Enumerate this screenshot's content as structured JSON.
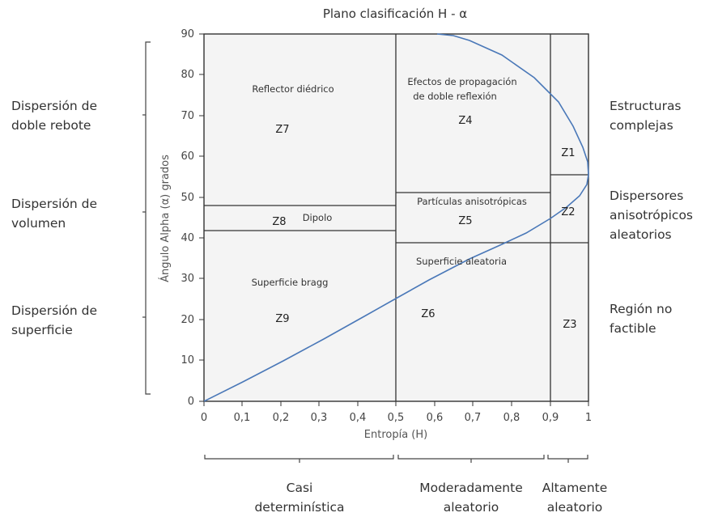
{
  "title": "Plano clasificación H - α",
  "xlabel": "Entropía (H)",
  "ylabel": "Ángulo Alpha (α) grados",
  "x_ticks": [
    "0",
    "0,1",
    "0,2",
    "0,3",
    "0,4",
    "0,5",
    "0,6",
    "0,7",
    "0,8",
    "0,9",
    "1"
  ],
  "y_ticks": [
    "0",
    "10",
    "20",
    "30",
    "40",
    "50",
    "60",
    "70",
    "80",
    "90"
  ],
  "zones": {
    "z1": "Z1",
    "z2": "Z2",
    "z3": "Z3",
    "z4": "Z4",
    "z5": "Z5",
    "z6": "Z6",
    "z7": "Z7",
    "z8": "Z8",
    "z9": "Z9"
  },
  "descriptions": {
    "reflector": "Reflector diédrico",
    "efectos_1": "Efectos de propagación",
    "efectos_2": "de doble reflexión",
    "particulas": "Partículas anisotrópicas",
    "dipolo": "Dipolo",
    "superficie_aleatoria": "Superficie aleatoria",
    "superficie_bragg": "Superficie bragg"
  },
  "left_labels": {
    "doble_1": "Dispersión de",
    "doble_2": "doble rebote",
    "volumen_1": "Dispersión de",
    "volumen_2": "volumen",
    "superficie_1": "Dispersión de",
    "superficie_2": "superficie"
  },
  "right_labels": {
    "estructuras_1": "Estructuras",
    "estructuras_2": "complejas",
    "dispersores_1": "Dispersores",
    "dispersores_2": "anisotrópicos",
    "dispersores_3": "aleatorios",
    "region_1": "Región no",
    "region_2": "factible"
  },
  "bottom_labels": {
    "casi_1": "Casi",
    "casi_2": "determinística",
    "moderadamente_1": "Moderadamente",
    "moderadamente_2": "aleatorio",
    "altamente_1": "Altamente",
    "altamente_2": "aleatorio"
  },
  "colors": {
    "curve": "#4a78b8",
    "plot_bg": "#f4f4f4",
    "lines": "#333333"
  }
}
